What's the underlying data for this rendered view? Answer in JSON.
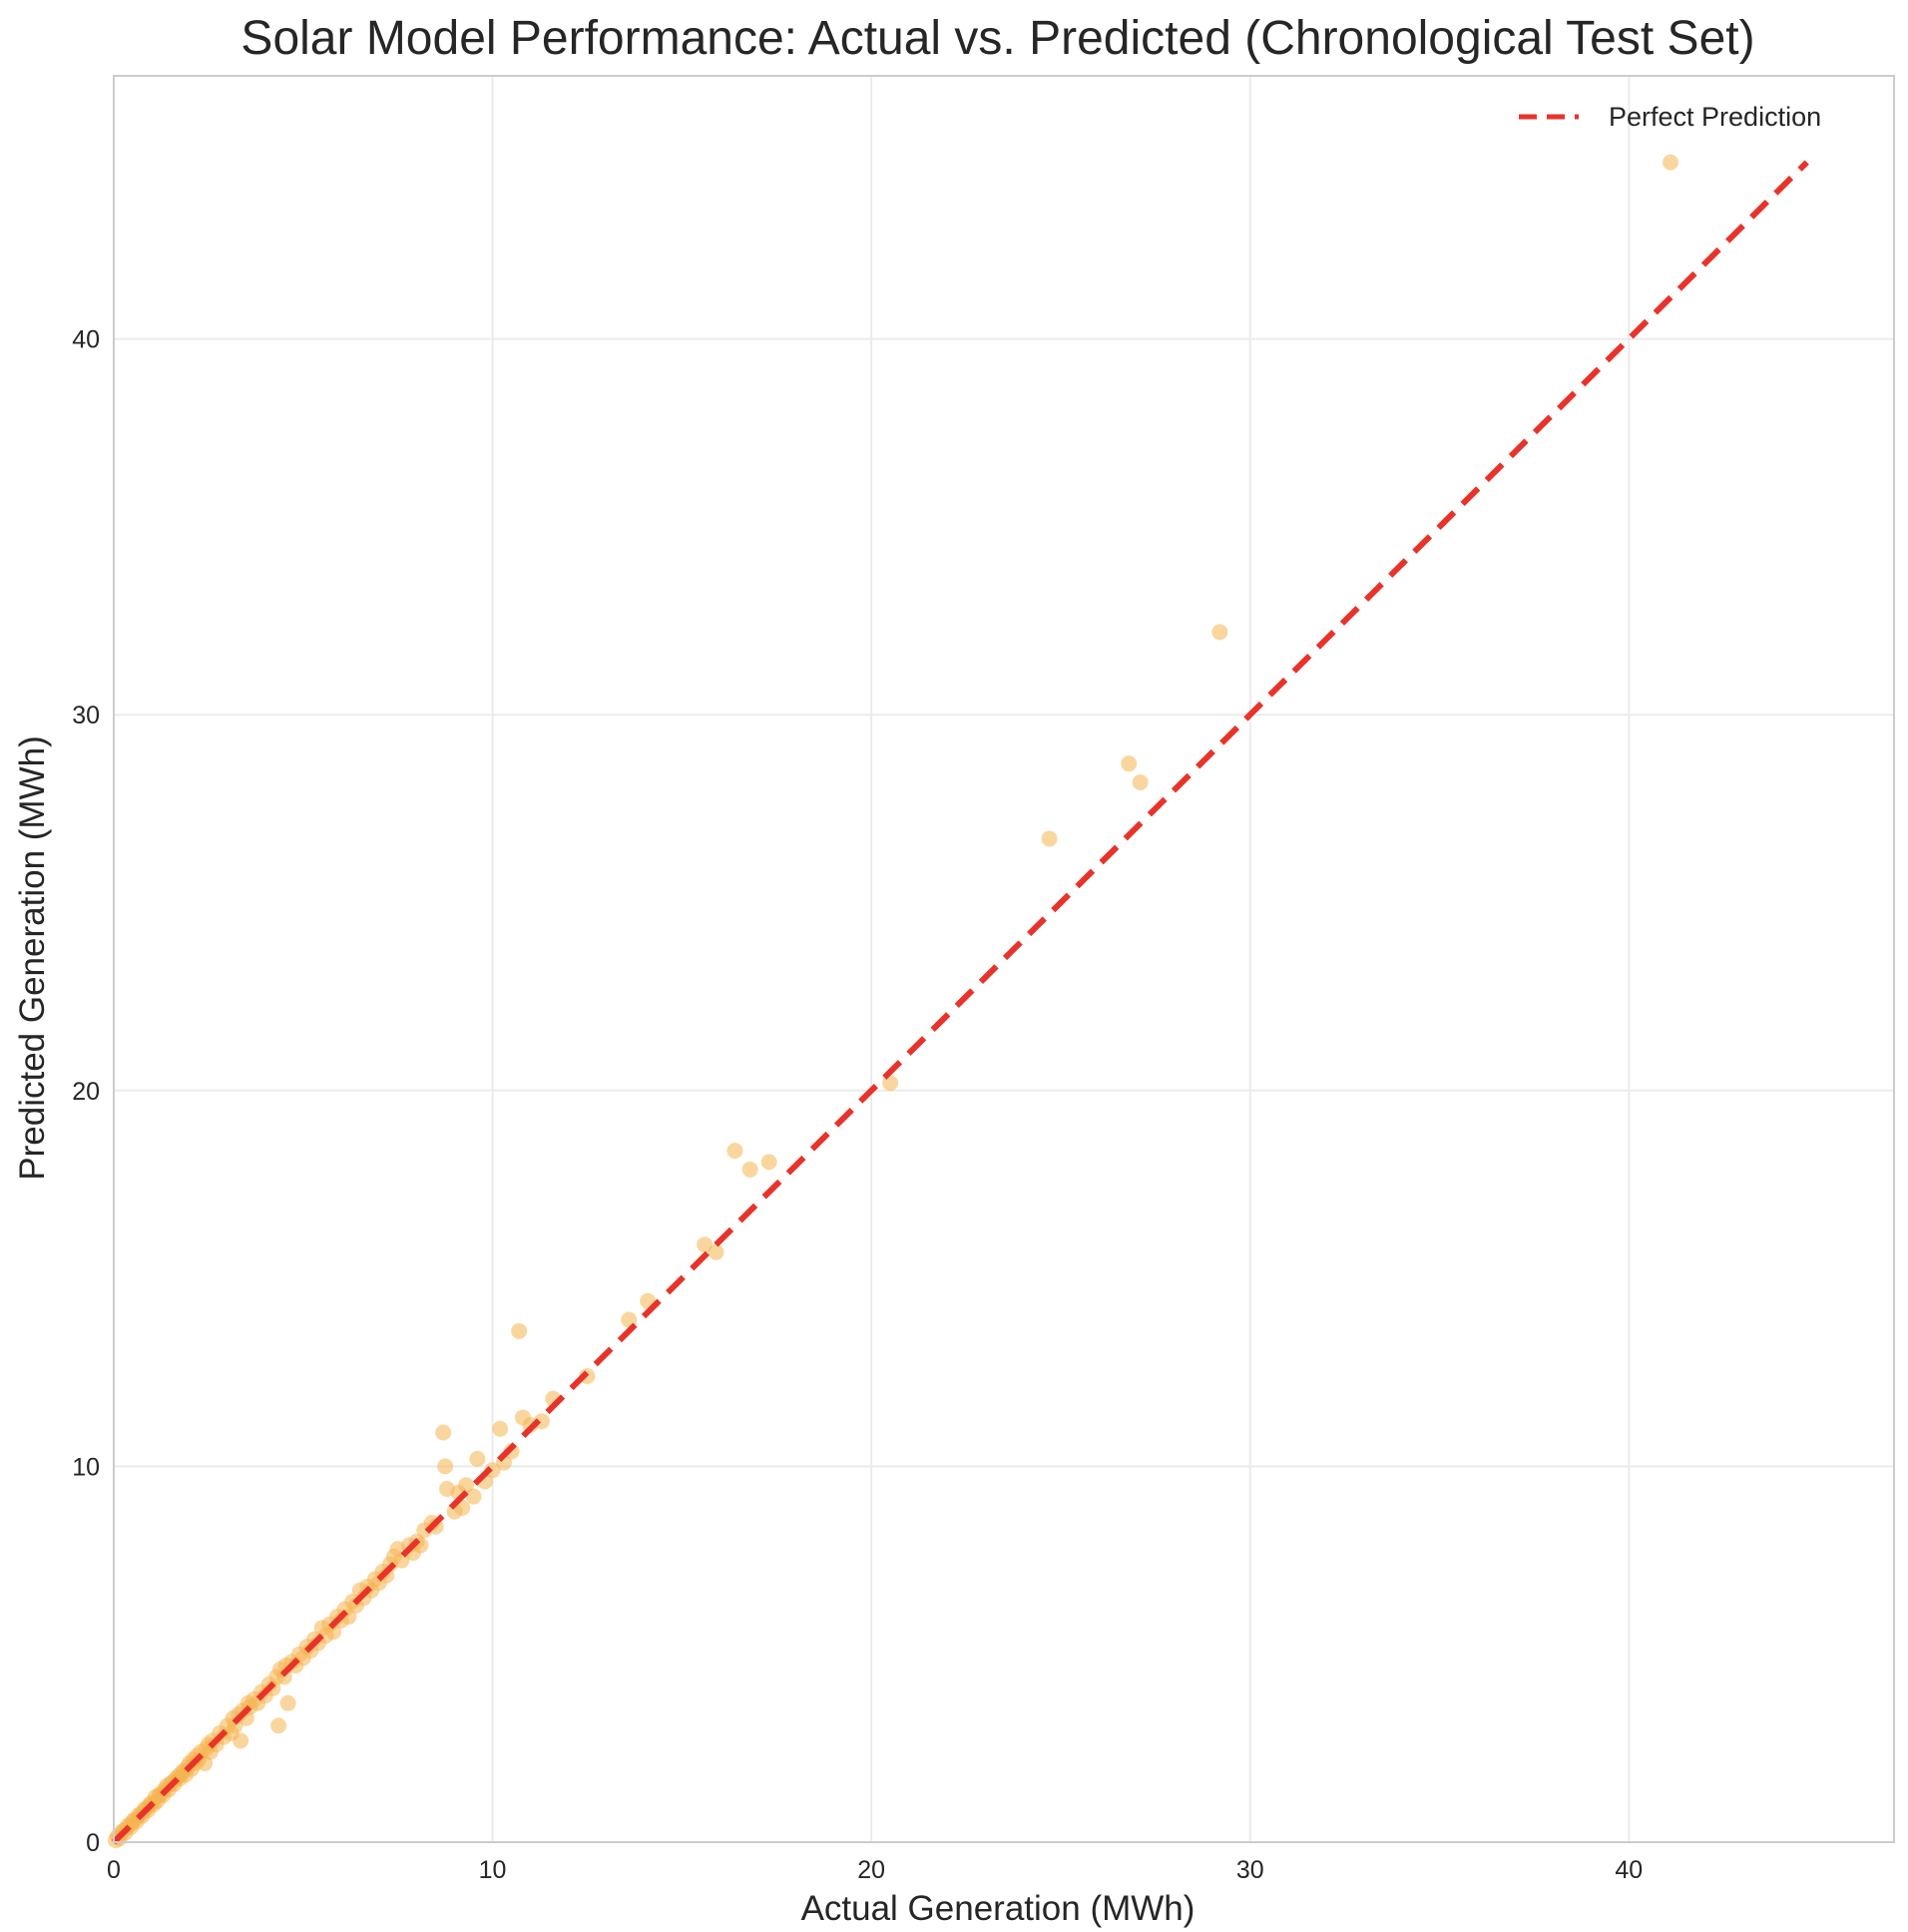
{
  "chart_data": {
    "type": "scatter",
    "title": "Solar Model Performance: Actual vs. Predicted (Chronological Test Set)",
    "xlabel": "Actual Generation (MWh)",
    "ylabel": "Predicted Generation (MWh)",
    "xlim": [
      0,
      47
    ],
    "ylim": [
      0,
      47
    ],
    "xticks": [
      0,
      10,
      20,
      30,
      40
    ],
    "yticks": [
      0,
      10,
      20,
      30,
      40
    ],
    "grid": true,
    "legend_position": "top-right",
    "point_color": "#f5b451",
    "line_color": "#e8332a",
    "series": [
      {
        "type": "scatter",
        "points": [
          [
            0.05,
            0.05
          ],
          [
            0.1,
            0.15
          ],
          [
            0.15,
            0.1
          ],
          [
            0.2,
            0.25
          ],
          [
            0.25,
            0.3
          ],
          [
            0.3,
            0.25
          ],
          [
            0.35,
            0.4
          ],
          [
            0.4,
            0.45
          ],
          [
            0.45,
            0.4
          ],
          [
            0.5,
            0.55
          ],
          [
            0.55,
            0.6
          ],
          [
            0.6,
            0.55
          ],
          [
            0.65,
            0.7
          ],
          [
            0.7,
            0.75
          ],
          [
            0.75,
            0.7
          ],
          [
            0.8,
            0.85
          ],
          [
            0.85,
            0.9
          ],
          [
            0.9,
            0.85
          ],
          [
            0.95,
            1.0
          ],
          [
            1.0,
            1.05
          ],
          [
            1.05,
            1.0
          ],
          [
            1.1,
            1.2
          ],
          [
            1.15,
            1.1
          ],
          [
            1.2,
            1.25
          ],
          [
            1.25,
            1.3
          ],
          [
            1.3,
            1.25
          ],
          [
            1.35,
            1.4
          ],
          [
            1.4,
            1.5
          ],
          [
            1.45,
            1.4
          ],
          [
            1.5,
            1.55
          ],
          [
            1.55,
            1.6
          ],
          [
            1.6,
            1.55
          ],
          [
            1.65,
            1.7
          ],
          [
            1.7,
            1.75
          ],
          [
            1.75,
            1.7
          ],
          [
            1.8,
            1.85
          ],
          [
            1.85,
            1.9
          ],
          [
            1.9,
            1.8
          ],
          [
            1.95,
            2.0
          ],
          [
            2.0,
            2.1
          ],
          [
            2.05,
            1.95
          ],
          [
            2.1,
            2.2
          ],
          [
            2.15,
            2.1
          ],
          [
            2.2,
            2.3
          ],
          [
            2.25,
            2.2
          ],
          [
            2.3,
            2.4
          ],
          [
            2.4,
            2.1
          ],
          [
            2.45,
            2.5
          ],
          [
            2.5,
            2.6
          ],
          [
            2.55,
            2.4
          ],
          [
            2.6,
            2.7
          ],
          [
            2.7,
            2.6
          ],
          [
            2.8,
            2.9
          ],
          [
            2.9,
            2.8
          ],
          [
            3.0,
            3.1
          ],
          [
            3.1,
            2.9
          ],
          [
            3.15,
            3.3
          ],
          [
            3.2,
            3.1
          ],
          [
            3.3,
            3.4
          ],
          [
            3.35,
            2.7
          ],
          [
            3.4,
            3.5
          ],
          [
            3.5,
            3.3
          ],
          [
            3.55,
            3.7
          ],
          [
            3.6,
            3.6
          ],
          [
            3.7,
            3.8
          ],
          [
            3.8,
            3.7
          ],
          [
            3.9,
            4.0
          ],
          [
            4.0,
            3.9
          ],
          [
            4.1,
            4.2
          ],
          [
            4.2,
            4.1
          ],
          [
            4.3,
            4.4
          ],
          [
            4.35,
            3.1
          ],
          [
            4.4,
            4.6
          ],
          [
            4.5,
            4.4
          ],
          [
            4.55,
            4.7
          ],
          [
            4.6,
            3.7
          ],
          [
            4.7,
            4.8
          ],
          [
            4.8,
            4.7
          ],
          [
            4.9,
            5.0
          ],
          [
            5.0,
            4.9
          ],
          [
            5.1,
            5.2
          ],
          [
            5.2,
            5.1
          ],
          [
            5.3,
            5.4
          ],
          [
            5.4,
            5.3
          ],
          [
            5.5,
            5.7
          ],
          [
            5.6,
            5.5
          ],
          [
            5.7,
            5.8
          ],
          [
            5.8,
            5.6
          ],
          [
            5.9,
            6.0
          ],
          [
            6.0,
            5.9
          ],
          [
            6.1,
            6.2
          ],
          [
            6.2,
            6.0
          ],
          [
            6.3,
            6.4
          ],
          [
            6.4,
            6.3
          ],
          [
            6.5,
            6.7
          ],
          [
            6.6,
            6.5
          ],
          [
            6.7,
            6.8
          ],
          [
            6.8,
            6.7
          ],
          [
            6.9,
            7.0
          ],
          [
            7.0,
            6.9
          ],
          [
            7.1,
            7.2
          ],
          [
            7.2,
            7.1
          ],
          [
            7.3,
            7.4
          ],
          [
            7.4,
            7.6
          ],
          [
            7.5,
            7.8
          ],
          [
            7.6,
            7.5
          ],
          [
            7.8,
            7.9
          ],
          [
            7.9,
            7.7
          ],
          [
            8.0,
            8.0
          ],
          [
            8.1,
            7.9
          ],
          [
            8.2,
            8.3
          ],
          [
            8.4,
            8.5
          ],
          [
            8.5,
            8.4
          ],
          [
            8.7,
            10.9
          ],
          [
            8.75,
            10.0
          ],
          [
            8.8,
            9.4
          ],
          [
            9.0,
            8.8
          ],
          [
            9.1,
            9.3
          ],
          [
            9.2,
            8.9
          ],
          [
            9.3,
            9.5
          ],
          [
            9.5,
            9.2
          ],
          [
            9.6,
            10.2
          ],
          [
            9.8,
            9.6
          ],
          [
            10.0,
            9.9
          ],
          [
            10.2,
            11.0
          ],
          [
            10.3,
            10.1
          ],
          [
            10.5,
            10.4
          ],
          [
            10.7,
            13.6
          ],
          [
            10.8,
            11.3
          ],
          [
            11.0,
            11.1
          ],
          [
            11.3,
            11.2
          ],
          [
            11.6,
            11.8
          ],
          [
            12.5,
            12.4
          ],
          [
            13.6,
            13.9
          ],
          [
            14.1,
            14.4
          ],
          [
            15.6,
            15.9
          ],
          [
            15.9,
            15.7
          ],
          [
            16.4,
            18.4
          ],
          [
            16.8,
            17.9
          ],
          [
            17.3,
            18.1
          ],
          [
            20.5,
            20.2
          ],
          [
            24.7,
            26.7
          ],
          [
            26.8,
            28.7
          ],
          [
            27.1,
            28.2
          ],
          [
            29.2,
            32.2
          ],
          [
            41.1,
            44.7
          ]
        ]
      },
      {
        "type": "line",
        "name": "Perfect Prediction",
        "x": [
          0,
          44.7
        ],
        "y": [
          0,
          44.7
        ]
      }
    ]
  }
}
